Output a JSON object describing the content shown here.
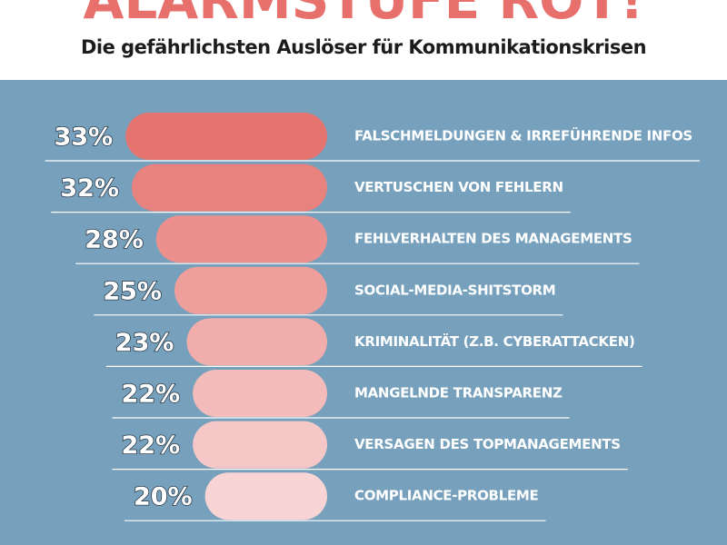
{
  "chart_data": {
    "type": "bar",
    "orientation": "horizontal",
    "title": "ALARMSTUFE ROT!",
    "subtitle": "Die gefährlichsten Auslöser für Kommunikationskrisen",
    "categories": [
      "FALSCHMELDUNGEN & IRREFÜHRENDE INFOS",
      "VERTUSCHEN VON FEHLERN",
      "FEHLVERHALTEN DES MANAGEMENTS",
      "SOCIAL-MEDIA-SHITSTORM",
      "KRIMINALITÄT (Z.B. CYBERATTACKEN)",
      "MANGELNDE TRANSPARENZ",
      "VERSAGEN DES TOPMANAGEMENTS",
      "COMPLIANCE-PROBLEME"
    ],
    "values": [
      33,
      32,
      28,
      25,
      23,
      22,
      22,
      20
    ],
    "value_labels": [
      "33%",
      "32%",
      "28%",
      "25%",
      "23%",
      "22%",
      "22%",
      "20%"
    ],
    "colors": [
      "#e57470",
      "#e8827e",
      "#eb908d",
      "#ee9f9c",
      "#f1adab",
      "#f3bcba",
      "#f5c8c7",
      "#f8d5d4"
    ]
  }
}
